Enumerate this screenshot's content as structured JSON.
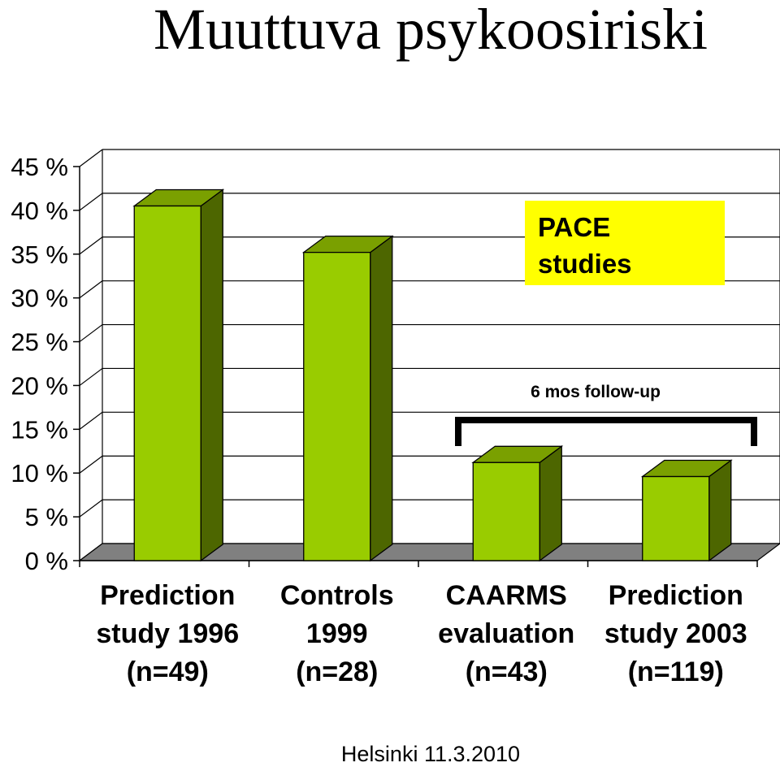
{
  "title": "Muuttuva psykoosiriski",
  "footer": "Helsinki 11.3.2010",
  "callout": {
    "line1": "PACE",
    "line2": "studies"
  },
  "bracket_label": "6 mos follow-up",
  "colors": {
    "bar_front": "#99cc00",
    "bar_top": "#7aa000",
    "bar_side": "#4d6600",
    "floor": "#808080",
    "callout_bg": "#ffff00"
  },
  "chart_data": {
    "type": "bar",
    "style": "3d",
    "categories": [
      [
        "Prediction",
        "study 1996",
        "(n=49)"
      ],
      [
        "Controls",
        "1999",
        "(n=28)"
      ],
      [
        "CAARMS",
        "evaluation",
        "(n=43)"
      ],
      [
        "Prediction",
        "study 2003",
        "(n=119)"
      ]
    ],
    "values": [
      40.5,
      35.2,
      11.2,
      9.6
    ],
    "yticks": [
      "0 %",
      "5 %",
      "10 %",
      "15 %",
      "20 %",
      "25 %",
      "30 %",
      "35 %",
      "40 %",
      "45 %"
    ],
    "ylim": [
      0,
      45
    ],
    "grid": true,
    "annotations": [
      {
        "text": "6 mos follow-up",
        "spans_categories": [
          2,
          3
        ]
      },
      {
        "text": "PACE studies",
        "spans_categories": [
          2,
          3
        ]
      }
    ]
  }
}
